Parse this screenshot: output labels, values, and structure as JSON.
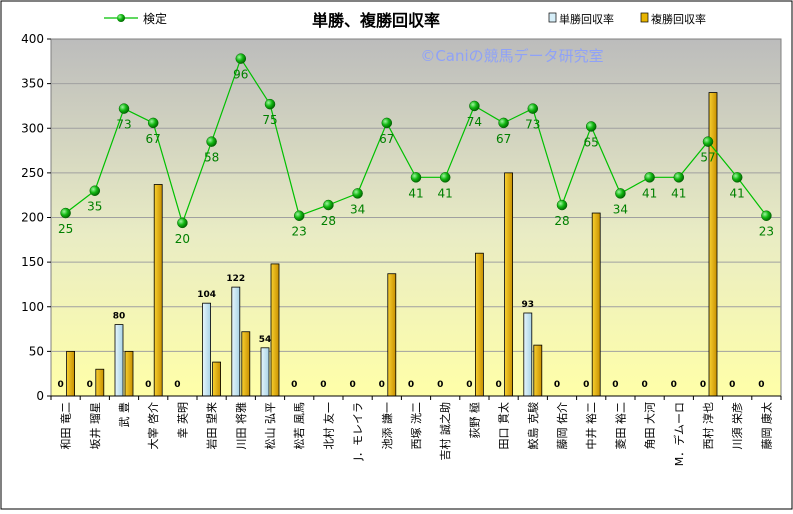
{
  "chart_data": {
    "type": "bar",
    "title": "単勝、複勝回収率",
    "watermark": "©Caniの競馬データ研究室",
    "categories": [
      "和田 竜二",
      "坂井 瑠星",
      "武 豊",
      "大宰 啓介",
      "幸 英明",
      "岩田 望来",
      "川田 将雅",
      "松山 弘平",
      "松若 風馬",
      "北村 友一",
      "J．モレイラ",
      "池添 謙一",
      "西塚 洸二",
      "吉村 誠之助",
      "荻野 極",
      "田口 貫太",
      "鮫島 克駿",
      "藤岡 佑介",
      "中井 裕二",
      "菱田 裕二",
      "角田 大河",
      "M．デムーロ",
      "西村 淳也",
      "川須 栄彦",
      "藤岡 康太"
    ],
    "series": [
      {
        "name": "単勝回収率",
        "values": [
          0,
          0,
          80,
          0,
          0,
          104,
          122,
          54,
          0,
          0,
          0,
          0,
          0,
          0,
          0,
          0,
          93,
          0,
          0,
          0,
          0,
          0,
          0,
          0,
          0
        ],
        "color": "#d6eef8"
      },
      {
        "name": "複勝回収率",
        "values": [
          50,
          30,
          50,
          237,
          0,
          38,
          72,
          148,
          0,
          0,
          0,
          137,
          0,
          0,
          160,
          250,
          57,
          0,
          205,
          0,
          0,
          0,
          340,
          0,
          0
        ],
        "color": "#e8b400"
      },
      {
        "name": "検定",
        "type": "line",
        "values": [
          205,
          230,
          322,
          306,
          194,
          285,
          378,
          327,
          202,
          214,
          227,
          306,
          245,
          245,
          325,
          306,
          322,
          214,
          302,
          227,
          245,
          245,
          285,
          245,
          202
        ],
        "labels": [
          25,
          35,
          73,
          67,
          20,
          58,
          96,
          75,
          23,
          28,
          34,
          67,
          41,
          41,
          74,
          67,
          73,
          28,
          65,
          34,
          41,
          41,
          57,
          41,
          23
        ],
        "color": "#00a000"
      }
    ],
    "ylim": [
      0,
      400
    ],
    "yticks": [
      0,
      50,
      100,
      150,
      200,
      250,
      300,
      350,
      400
    ],
    "grid": true,
    "legend": [
      "検定",
      "単勝回収率",
      "複勝回収率"
    ]
  }
}
